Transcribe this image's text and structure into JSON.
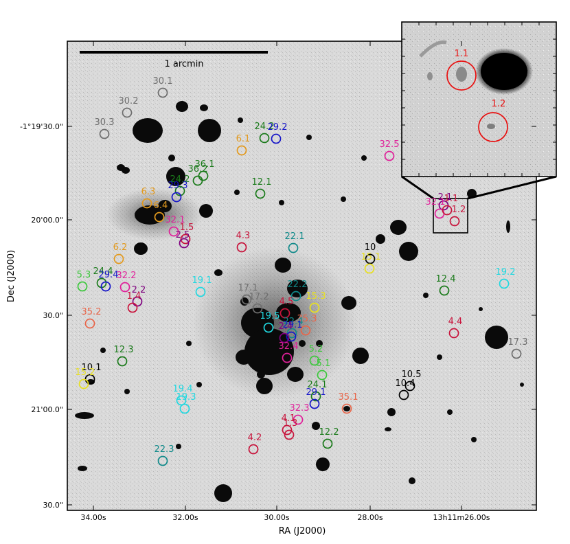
{
  "figure": {
    "scalebar_label": "1 arcmin",
    "x_axis_label": "RA (J2000)",
    "y_axis_label": "Dec (J2000)",
    "x_ticks": [
      "34.00s",
      "32.00s",
      "30.00s",
      "28.00s",
      "13h11m26.00s"
    ],
    "y_ticks": [
      "-1°19'30.0\"",
      "20'00.0\"",
      "30.0\"",
      "21'00.0\"",
      "30.0\""
    ]
  },
  "colors": {
    "gray": "#6e6e6e",
    "darkgreen": "#1a7a1a",
    "blue": "#1515c8",
    "orange": "#e39a1e",
    "crimson": "#c8143c",
    "magenta": "#e0209a",
    "purple": "#800080",
    "teal": "#108a8a",
    "cyan": "#20d8e0",
    "yellow": "#e8e020",
    "black": "#000000",
    "salmon": "#e8664a",
    "limegreen": "#3cc83c",
    "red": "#e81010"
  },
  "markers": [
    {
      "label": "30.1",
      "color": "gray"
    },
    {
      "label": "30.2",
      "color": "gray"
    },
    {
      "label": "30.3",
      "color": "gray"
    },
    {
      "label": "6.1",
      "color": "orange"
    },
    {
      "label": "24.2",
      "color": "darkgreen"
    },
    {
      "label": "29.2",
      "color": "blue"
    },
    {
      "label": "36.1",
      "color": "darkgreen"
    },
    {
      "label": "36.2",
      "color": "darkgreen"
    },
    {
      "label": "24.2",
      "color": "darkgreen"
    },
    {
      "label": "29.3",
      "color": "blue"
    },
    {
      "label": "12.1",
      "color": "darkgreen"
    },
    {
      "label": "32.5",
      "color": "magenta"
    },
    {
      "label": "6.3",
      "color": "orange"
    },
    {
      "label": "6.4",
      "color": "orange"
    },
    {
      "label": "32.1",
      "color": "magenta"
    },
    {
      "label": "1.5",
      "color": "crimson"
    },
    {
      "label": "2.5",
      "color": "purple"
    },
    {
      "label": "4.3",
      "color": "crimson"
    },
    {
      "label": "22.1",
      "color": "teal"
    },
    {
      "label": "10",
      "color": "black"
    },
    {
      "label": "15.1",
      "color": "yellow"
    },
    {
      "label": "2.1",
      "color": "purple"
    },
    {
      "label": "32.1",
      "color": "magenta"
    },
    {
      "label": "1.1",
      "color": "crimson"
    },
    {
      "label": "1.2",
      "color": "crimson"
    },
    {
      "label": "6.2",
      "color": "orange"
    },
    {
      "label": "5.3",
      "color": "limegreen"
    },
    {
      "label": "24.4",
      "color": "darkgreen"
    },
    {
      "label": "29.4",
      "color": "blue"
    },
    {
      "label": "32.2",
      "color": "magenta"
    },
    {
      "label": "2.2",
      "color": "purple"
    },
    {
      "label": "1.4",
      "color": "crimson"
    },
    {
      "label": "19.1",
      "color": "cyan"
    },
    {
      "label": "17.1",
      "color": "gray"
    },
    {
      "label": "17.2",
      "color": "gray"
    },
    {
      "label": "22.2",
      "color": "teal"
    },
    {
      "label": "15.3",
      "color": "yellow"
    },
    {
      "label": "4.5",
      "color": "crimson"
    },
    {
      "label": "19.5",
      "color": "cyan"
    },
    {
      "label": "35.3",
      "color": "salmon"
    },
    {
      "label": "22.4",
      "color": "teal"
    },
    {
      "label": "29.1",
      "color": "blue"
    },
    {
      "label": "2.4",
      "color": "purple"
    },
    {
      "label": "32.4",
      "color": "magenta"
    },
    {
      "label": "12.4",
      "color": "darkgreen"
    },
    {
      "label": "19.2",
      "color": "cyan"
    },
    {
      "label": "4.4",
      "color": "crimson"
    },
    {
      "label": "17.3",
      "color": "gray"
    },
    {
      "label": "35.2",
      "color": "salmon"
    },
    {
      "label": "12.3",
      "color": "darkgreen"
    },
    {
      "label": "5.2",
      "color": "limegreen"
    },
    {
      "label": "5.1",
      "color": "limegreen"
    },
    {
      "label": "10.1",
      "color": "black"
    },
    {
      "label": "15.2",
      "color": "yellow"
    },
    {
      "label": "10.5",
      "color": "black"
    },
    {
      "label": "10.4",
      "color": "black"
    },
    {
      "label": "19.4",
      "color": "cyan"
    },
    {
      "label": "19.3",
      "color": "cyan"
    },
    {
      "label": "24.1",
      "color": "darkgreen"
    },
    {
      "label": "29.1",
      "color": "blue"
    },
    {
      "label": "35.1",
      "color": "salmon"
    },
    {
      "label": "32.3",
      "color": "magenta"
    },
    {
      "label": "4.1",
      "color": "crimson"
    },
    {
      "label": "1.3",
      "color": "crimson"
    },
    {
      "label": "12.2",
      "color": "darkgreen"
    },
    {
      "label": "4.2",
      "color": "crimson"
    },
    {
      "label": "22.3",
      "color": "teal"
    }
  ],
  "inset": {
    "markers": [
      {
        "label": "1.1",
        "color": "red"
      },
      {
        "label": "1.2",
        "color": "red"
      }
    ]
  }
}
